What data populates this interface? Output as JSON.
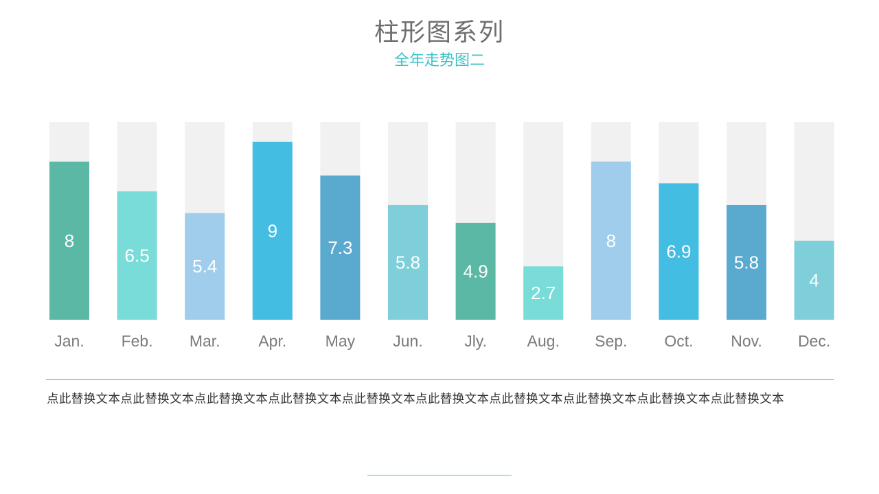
{
  "page": {
    "title": "柱形图系列",
    "subtitle": "全年走势图二",
    "body_text": "点此替换文本点此替换文本点此替换文本点此替换文本点此替换文本点此替换文本点此替换文本点此替换文本点此替换文本点此替换文本"
  },
  "colors": {
    "title": "#6f6f6f",
    "accent": "#3fc3c8",
    "track": "#f1f1f1"
  },
  "chart_data": {
    "type": "bar",
    "categories": [
      "Jan.",
      "Feb.",
      "Mar.",
      "Apr.",
      "May",
      "Jun.",
      "Jly.",
      "Aug.",
      "Sep.",
      "Oct.",
      "Nov.",
      "Dec."
    ],
    "values": [
      8,
      6.5,
      5.4,
      9,
      7.3,
      5.8,
      4.9,
      2.7,
      8,
      6.9,
      5.8,
      4
    ],
    "labels": [
      "8",
      "6.5",
      "5.4",
      "9",
      "7.3",
      "5.8",
      "4.9",
      "2.7",
      "8",
      "6.9",
      "5.8",
      "4"
    ],
    "bar_colors": [
      "#5bb8a4",
      "#7adcd8",
      "#9fcdeb",
      "#44bde3",
      "#5aaad0",
      "#7ecfd9",
      "#5bb8a4",
      "#7adcd8",
      "#9fcdeb",
      "#44bde3",
      "#5aaad0",
      "#7ecfd9"
    ],
    "ylim": [
      0,
      10
    ],
    "grid": false,
    "legend": "none"
  }
}
